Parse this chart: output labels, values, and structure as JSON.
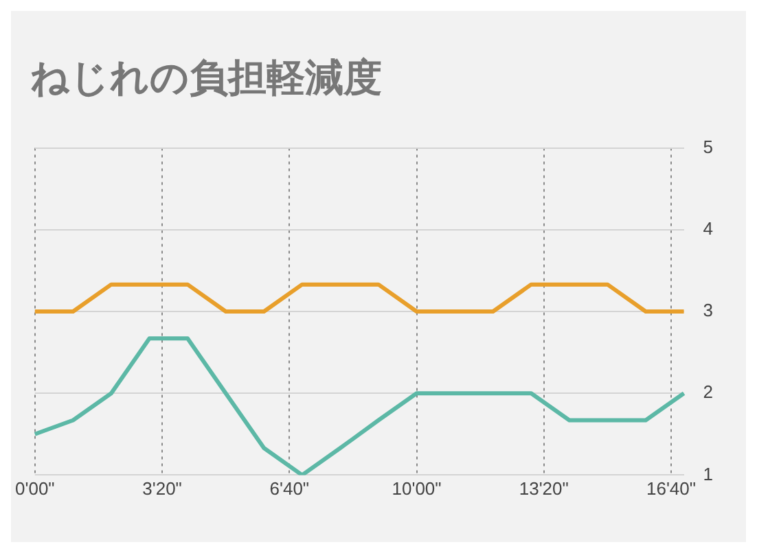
{
  "chart_data": {
    "type": "line",
    "title": "ねじれの負担軽減度",
    "categories": [
      "0'00\"",
      null,
      null,
      null,
      null,
      null,
      null,
      null,
      null,
      null,
      "3'20\"",
      null,
      null,
      null,
      null,
      null,
      null,
      null,
      null,
      null,
      "6'40\"",
      null,
      null,
      null,
      null,
      null,
      null,
      null,
      null,
      null,
      "10'00\"",
      null,
      null,
      null,
      null,
      null,
      null,
      null,
      null,
      null,
      "13'20\"",
      null,
      null,
      null,
      null,
      null,
      null,
      null,
      null,
      null,
      "16'40\"",
      null
    ],
    "series": [
      {
        "color": "#e89f2b",
        "values": [
          3,
          null,
          null,
          3,
          null,
          null,
          3.33,
          null,
          null,
          3.33,
          null,
          null,
          3.33,
          null,
          null,
          3,
          null,
          null,
          3,
          null,
          null,
          3.33,
          null,
          null,
          3.33,
          null,
          null,
          3.33,
          null,
          null,
          3,
          null,
          null,
          3,
          null,
          null,
          3,
          null,
          null,
          3.33,
          null,
          null,
          3.33,
          null,
          null,
          3.33,
          null,
          null,
          3,
          null,
          null,
          3
        ]
      },
      {
        "color": "#5cb8a6",
        "values": [
          1.5,
          null,
          null,
          1.67,
          null,
          null,
          2,
          null,
          null,
          2.67,
          null,
          null,
          2.67,
          null,
          null,
          2,
          null,
          null,
          1.33,
          null,
          null,
          1,
          null,
          null,
          1.33,
          null,
          null,
          1.67,
          null,
          null,
          2,
          null,
          null,
          2,
          null,
          null,
          2,
          null,
          null,
          2,
          null,
          null,
          1.67,
          null,
          null,
          1.67,
          null,
          null,
          1.67,
          null,
          null,
          2
        ]
      }
    ],
    "ylim": [
      1,
      5
    ],
    "yticks": [
      1,
      2,
      3,
      4,
      5
    ],
    "grid": true,
    "marker": "none",
    "line_style": "solid"
  }
}
